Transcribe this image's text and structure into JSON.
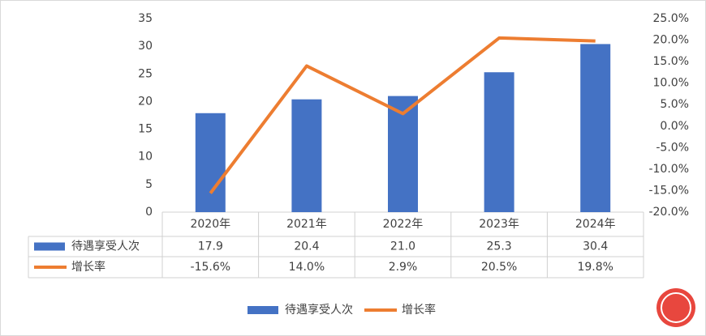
{
  "chart_data": {
    "type": "bar-line-table",
    "categories": [
      "2020年",
      "2021年",
      "2022年",
      "2023年",
      "2024年"
    ],
    "series": [
      {
        "name": "待遇享受人次",
        "type": "bar",
        "color": "#4472c4",
        "values": [
          17.9,
          20.4,
          21.0,
          25.3,
          30.4
        ],
        "value_labels": [
          "17.9",
          "20.4",
          "21.0",
          "25.3",
          "30.4"
        ]
      },
      {
        "name": "增长率",
        "type": "line",
        "axis": "y2",
        "color": "#ed7d31",
        "values": [
          -15.6,
          14.0,
          2.9,
          20.5,
          19.8
        ],
        "value_labels": [
          "-15.6%",
          "14.0%",
          "2.9%",
          "20.5%",
          "19.8%"
        ]
      }
    ],
    "ylim": [
      0,
      35
    ],
    "yticks": [
      0,
      5,
      10,
      15,
      20,
      25,
      30,
      35
    ],
    "y2lim": [
      -20,
      25
    ],
    "y2ticks": [
      {
        "value": -20,
        "label": "-20.0%"
      },
      {
        "value": -15,
        "label": "-15.0%"
      },
      {
        "value": -10,
        "label": "-10.0%"
      },
      {
        "value": -5,
        "label": "-5.0%"
      },
      {
        "value": 0,
        "label": "0.0%"
      },
      {
        "value": 5,
        "label": "5.0%"
      },
      {
        "value": 10,
        "label": "10.0%"
      },
      {
        "value": 15,
        "label": "15.0%"
      },
      {
        "value": 20,
        "label": "20.0%"
      },
      {
        "value": 25,
        "label": "25.0%"
      }
    ],
    "grid": false
  }
}
